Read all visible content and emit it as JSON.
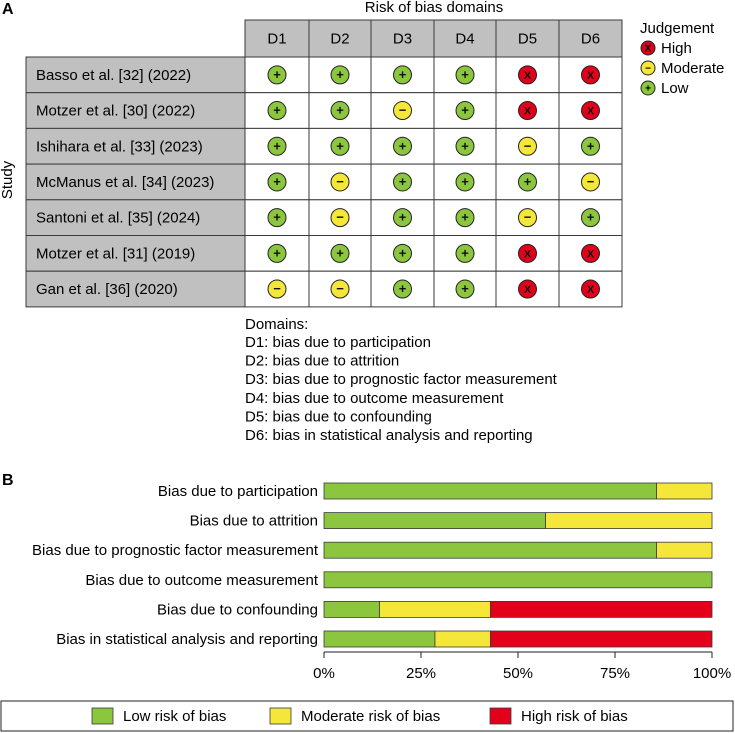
{
  "panel_a": {
    "label": "A",
    "header": "Risk of bias domains",
    "y_axis_label": "Study",
    "domains": [
      "D1",
      "D2",
      "D3",
      "D4",
      "D5",
      "D6"
    ],
    "studies": [
      {
        "name": "Basso et al. [32] (2022)",
        "judgements": [
          "low",
          "low",
          "low",
          "low",
          "high",
          "high"
        ]
      },
      {
        "name": "Motzer et al. [30] (2022)",
        "judgements": [
          "low",
          "low",
          "moderate",
          "low",
          "high",
          "high"
        ]
      },
      {
        "name": "Ishihara et al. [33] (2023)",
        "judgements": [
          "low",
          "low",
          "low",
          "low",
          "moderate",
          "low"
        ]
      },
      {
        "name": "McManus et al. [34] (2023)",
        "judgements": [
          "low",
          "moderate",
          "low",
          "low",
          "low",
          "moderate"
        ]
      },
      {
        "name": "Santoni et al. [35] (2024)",
        "judgements": [
          "low",
          "moderate",
          "low",
          "low",
          "moderate",
          "low"
        ]
      },
      {
        "name": "Motzer et al. [31] (2019)",
        "judgements": [
          "low",
          "low",
          "low",
          "low",
          "high",
          "high"
        ]
      },
      {
        "name": "Gan et al. [36] (2020)",
        "judgements": [
          "moderate",
          "moderate",
          "low",
          "low",
          "high",
          "high"
        ]
      }
    ],
    "symbols": {
      "high": "X",
      "moderate": "−",
      "low": "+"
    },
    "judgement_legend": {
      "title": "Judgement",
      "items": [
        {
          "key": "high",
          "label": "High"
        },
        {
          "key": "moderate",
          "label": "Moderate"
        },
        {
          "key": "low",
          "label": "Low"
        }
      ]
    },
    "domains_legend": {
      "title": "Domains:",
      "items": [
        "D1: bias due to participation",
        "D2: bias due to attrition",
        "D3: bias due to prognostic factor measurement",
        "D4: bias due to outcome measurement",
        "D5: bias due to confounding",
        "D6: bias in statistical analysis and reporting"
      ]
    }
  },
  "panel_b": {
    "label": "B"
  },
  "colors": {
    "low": "#8cc63f",
    "moderate": "#f5e63a",
    "high": "#e3001b",
    "cell_gray": "#c0c0c0",
    "border": "#3a3a3a"
  },
  "chart_data": {
    "type": "bar",
    "orientation": "horizontal",
    "stacked": true,
    "categories": [
      "Bias due to participation",
      "Bias due to attrition",
      "Bias due to prognostic factor measurement",
      "Bias due to outcome measurement",
      "Bias due to confounding",
      "Bias in statistical analysis and reporting"
    ],
    "series": [
      {
        "name": "Low risk of bias",
        "key": "low",
        "values": [
          85.7,
          57.1,
          85.7,
          100,
          14.3,
          28.6
        ]
      },
      {
        "name": "Moderate risk of bias",
        "key": "moderate",
        "values": [
          14.3,
          42.9,
          14.3,
          0,
          28.6,
          14.3
        ]
      },
      {
        "name": "High risk of bias",
        "key": "high",
        "values": [
          0,
          0,
          0,
          0,
          57.1,
          57.1
        ]
      }
    ],
    "x_ticks": [
      "0%",
      "25%",
      "50%",
      "75%",
      "100%"
    ],
    "xlim": [
      0,
      100
    ],
    "legend_position": "bottom"
  }
}
